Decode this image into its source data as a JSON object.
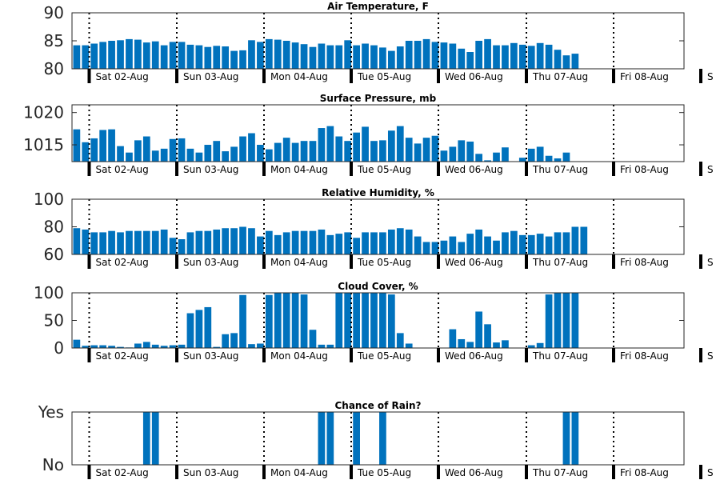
{
  "bar_color": "#0072BD",
  "day_labels": [
    "Sat 02-Aug",
    "Sun 03-Aug",
    "Mon 04-Aug",
    "Tue 05-Aug",
    "Wed 06-Aug",
    "Thu 07-Aug",
    "Fri 08-Aug",
    "S"
  ],
  "chart_data": [
    {
      "type": "bar",
      "title": "Air Temperature, F",
      "ylim": [
        80,
        90
      ],
      "yticks": [
        80,
        85,
        90
      ],
      "ytick_labels": [
        "80",
        "85",
        "90"
      ],
      "values": [
        84.2,
        84.2,
        84.5,
        84.8,
        85.0,
        85.1,
        85.3,
        85.2,
        84.7,
        84.9,
        84.2,
        84.8,
        84.8,
        84.3,
        84.2,
        83.9,
        84.1,
        84.0,
        83.2,
        83.3,
        85.1,
        84.8,
        85.3,
        85.2,
        85.0,
        84.7,
        84.4,
        83.9,
        84.5,
        84.2,
        84.2,
        85.1,
        84.2,
        84.5,
        84.2,
        83.8,
        83.2,
        84.0,
        85.0,
        85.0,
        85.3,
        84.8,
        84.7,
        84.5,
        83.6,
        83.0,
        85.0,
        85.3,
        84.2,
        84.2,
        84.6,
        84.3,
        84.1,
        84.6,
        84.3,
        83.4,
        82.4,
        82.7
      ]
    },
    {
      "type": "bar",
      "title": "Surface Pressure, mb",
      "ylim": [
        1012.4,
        1021.2
      ],
      "yticks": [
        1015,
        1020
      ],
      "ytick_labels": [
        "1015",
        "1020"
      ],
      "values": [
        1017.4,
        1015.4,
        1016.0,
        1017.3,
        1017.4,
        1014.8,
        1013.8,
        1015.7,
        1016.3,
        1014.1,
        1014.4,
        1015.9,
        1016.0,
        1014.4,
        1013.8,
        1015.0,
        1015.6,
        1014.0,
        1014.7,
        1016.3,
        1016.8,
        1015.0,
        1014.3,
        1015.3,
        1016.1,
        1015.3,
        1015.6,
        1015.6,
        1017.6,
        1017.9,
        1016.3,
        1015.6,
        1016.9,
        1017.8,
        1015.6,
        1015.7,
        1017.2,
        1017.9,
        1016.1,
        1015.2,
        1016.1,
        1016.4,
        1014.1,
        1014.7,
        1015.7,
        1015.5,
        1013.6,
        1012.6,
        1013.8,
        1014.6,
        1012.4,
        1013.0,
        1014.4,
        1014.7,
        1013.3,
        1012.9,
        1013.8
      ]
    },
    {
      "type": "bar",
      "title": "Relative Humidity, %",
      "ylim": [
        60,
        100
      ],
      "yticks": [
        60,
        80,
        100
      ],
      "ytick_labels": [
        "60",
        "80",
        "100"
      ],
      "values": [
        79,
        78,
        76,
        76,
        77,
        76,
        77,
        77,
        77,
        77,
        78,
        72,
        71,
        76,
        77,
        77,
        78,
        79,
        79,
        80,
        79,
        73,
        77,
        74,
        76,
        77,
        77,
        77,
        78,
        74,
        75,
        76,
        72,
        76,
        76,
        76,
        78,
        79,
        78,
        73,
        69,
        69,
        70,
        73,
        69,
        75,
        78,
        73,
        70,
        76,
        77,
        74,
        74,
        75,
        73,
        76,
        76,
        80,
        80
      ]
    },
    {
      "type": "bar",
      "title": "Cloud Cover, %",
      "ylim": [
        0,
        100
      ],
      "yticks": [
        0,
        50,
        100
      ],
      "ytick_labels": [
        "0",
        "50",
        "100"
      ],
      "values": [
        15,
        4,
        5,
        5,
        4,
        2,
        1,
        8,
        11,
        6,
        4,
        5,
        6,
        63,
        69,
        74,
        2,
        25,
        27,
        96,
        7,
        8,
        96,
        100,
        100,
        100,
        97,
        33,
        6,
        6,
        100,
        100,
        100,
        100,
        100,
        100,
        97,
        27,
        8,
        0,
        0,
        0,
        0,
        34,
        16,
        11,
        66,
        43,
        10,
        14,
        0,
        0,
        5,
        9,
        97,
        100,
        100,
        100
      ]
    },
    {
      "type": "bar",
      "title": "Chance of Rain?",
      "ylim": [
        0,
        1
      ],
      "yticks": [
        0,
        1
      ],
      "ytick_labels": [
        "No",
        "Yes"
      ],
      "values": [
        0,
        0,
        0,
        0,
        0,
        0,
        0,
        0,
        1,
        1,
        0,
        0,
        0,
        0,
        0,
        0,
        0,
        0,
        0,
        0,
        0,
        0,
        0,
        0,
        0,
        0,
        0,
        0,
        1,
        1,
        0,
        0,
        1,
        0,
        0,
        1,
        0,
        0,
        0,
        0,
        0,
        0,
        0,
        0,
        0,
        0,
        0,
        0,
        0,
        0,
        0,
        0,
        0,
        0,
        0,
        0,
        1,
        1,
        0,
        0,
        0,
        0,
        0,
        0
      ]
    }
  ]
}
